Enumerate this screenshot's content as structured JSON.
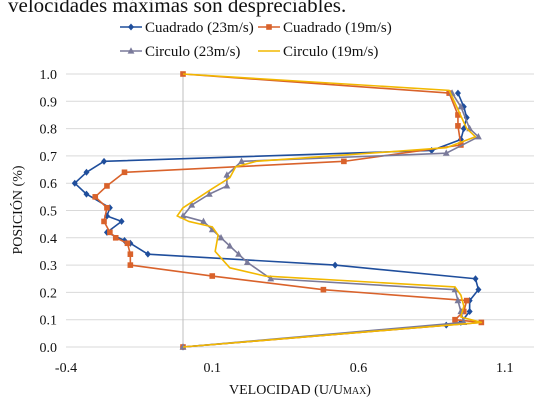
{
  "page": {
    "cut_caption": "velocidades máximas son despreciables."
  },
  "chart_data": {
    "type": "line",
    "xlabel": "VELOCIDAD (U/U",
    "xlabel_sub": "MAX",
    "xlabel_close": ")",
    "ylabel": "POSICIÓN (%)",
    "xlim": [
      -0.4,
      1.2
    ],
    "ylim": [
      0,
      1.0
    ],
    "xticks": [
      -0.4,
      0.1,
      0.6,
      1.1
    ],
    "xtick_labels": [
      "-0.4",
      "0.1",
      "0.6",
      "1.1"
    ],
    "yticks": [
      0,
      0.1,
      0.2,
      0.3,
      0.4,
      0.5,
      0.6,
      0.7,
      0.8,
      0.9,
      1.0
    ],
    "ytick_labels": [
      "0.0",
      "0.1",
      "0.2",
      "0.3",
      "0.4",
      "0.5",
      "0.6",
      "0.7",
      "0.8",
      "0.9",
      "1.0"
    ],
    "grid": "horizontal",
    "legend_position": "top",
    "series": [
      {
        "name": "Cuadrado (23m/s)",
        "color": "#1f4e9c",
        "marker": "diamond",
        "points": [
          [
            0.94,
            0.93
          ],
          [
            0.96,
            0.88
          ],
          [
            0.97,
            0.84
          ],
          [
            0.96,
            0.8
          ],
          [
            0.95,
            0.76
          ],
          [
            0.85,
            0.72
          ],
          [
            -0.27,
            0.68
          ],
          [
            -0.33,
            0.64
          ],
          [
            -0.37,
            0.6
          ],
          [
            -0.33,
            0.56
          ],
          [
            -0.25,
            0.51
          ],
          [
            -0.26,
            0.48
          ],
          [
            -0.21,
            0.46
          ],
          [
            -0.26,
            0.42
          ],
          [
            -0.2,
            0.39
          ],
          [
            -0.18,
            0.38
          ],
          [
            -0.12,
            0.34
          ],
          [
            0.52,
            0.3
          ],
          [
            1.0,
            0.25
          ],
          [
            1.01,
            0.21
          ],
          [
            0.98,
            0.17
          ],
          [
            0.98,
            0.13
          ],
          [
            0.95,
            0.09
          ],
          [
            0.9,
            0.08
          ],
          [
            0.0,
            0.0
          ]
        ]
      },
      {
        "name": "Cuadrado (19m/s)",
        "color": "#d9622b",
        "marker": "square",
        "points": [
          [
            0.0,
            1.0
          ],
          [
            0.91,
            0.93
          ],
          [
            0.94,
            0.85
          ],
          [
            0.94,
            0.81
          ],
          [
            0.95,
            0.74
          ],
          [
            0.55,
            0.68
          ],
          [
            -0.2,
            0.64
          ],
          [
            -0.26,
            0.59
          ],
          [
            -0.3,
            0.55
          ],
          [
            -0.26,
            0.51
          ],
          [
            -0.27,
            0.46
          ],
          [
            -0.25,
            0.42
          ],
          [
            -0.23,
            0.4
          ],
          [
            -0.19,
            0.38
          ],
          [
            -0.18,
            0.34
          ],
          [
            -0.18,
            0.3
          ],
          [
            0.1,
            0.26
          ],
          [
            0.48,
            0.21
          ],
          [
            0.97,
            0.17
          ],
          [
            0.96,
            0.13
          ],
          [
            0.93,
            0.1
          ],
          [
            1.02,
            0.09
          ],
          [
            0.0,
            0.0
          ]
        ]
      },
      {
        "name": "Circulo (23m/s)",
        "color": "#7a7a9a",
        "marker": "triangle",
        "points": [
          [
            0.92,
            0.93
          ],
          [
            0.95,
            0.88
          ],
          [
            0.98,
            0.8
          ],
          [
            1.01,
            0.77
          ],
          [
            0.9,
            0.71
          ],
          [
            0.2,
            0.68
          ],
          [
            0.15,
            0.63
          ],
          [
            0.15,
            0.59
          ],
          [
            0.09,
            0.56
          ],
          [
            0.03,
            0.52
          ],
          [
            0.0,
            0.48
          ],
          [
            0.07,
            0.46
          ],
          [
            0.1,
            0.43
          ],
          [
            0.13,
            0.4
          ],
          [
            0.16,
            0.37
          ],
          [
            0.19,
            0.34
          ],
          [
            0.22,
            0.31
          ],
          [
            0.3,
            0.25
          ],
          [
            0.93,
            0.21
          ],
          [
            0.94,
            0.17
          ],
          [
            0.95,
            0.13
          ],
          [
            0.96,
            0.09
          ],
          [
            0.0,
            0.0
          ]
        ]
      },
      {
        "name": "Circulo (19m/s)",
        "color": "#f2b800",
        "marker": "none",
        "points": [
          [
            0.0,
            1.0
          ],
          [
            0.91,
            0.94
          ],
          [
            0.94,
            0.87
          ],
          [
            0.97,
            0.8
          ],
          [
            1.0,
            0.77
          ],
          [
            0.9,
            0.73
          ],
          [
            0.25,
            0.68
          ],
          [
            0.18,
            0.66
          ],
          [
            0.16,
            0.62
          ],
          [
            0.1,
            0.58
          ],
          [
            0.0,
            0.51
          ],
          [
            -0.02,
            0.48
          ],
          [
            0.02,
            0.46
          ],
          [
            0.1,
            0.44
          ],
          [
            0.12,
            0.41
          ],
          [
            0.11,
            0.35
          ],
          [
            0.16,
            0.29
          ],
          [
            0.28,
            0.26
          ],
          [
            0.93,
            0.22
          ],
          [
            0.95,
            0.19
          ],
          [
            0.96,
            0.15
          ],
          [
            0.95,
            0.11
          ],
          [
            1.02,
            0.09
          ],
          [
            0.0,
            0.0
          ]
        ]
      }
    ]
  }
}
